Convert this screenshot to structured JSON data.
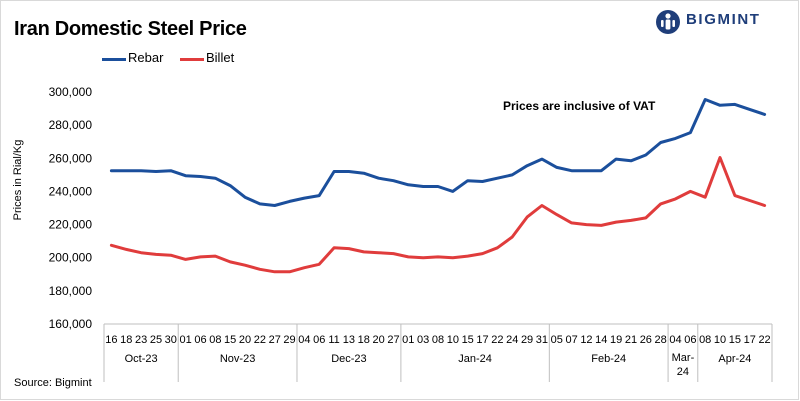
{
  "header": {
    "title": "Iran Domestic Steel Price",
    "logo_text": "BIGMINT"
  },
  "annotation": "Prices are inclusive  of VAT",
  "source": "Source: Bigmint",
  "colors": {
    "rebar": "#1b4f9c",
    "billet": "#e03c3c",
    "logo": "#1f3e7a"
  },
  "chart_data": {
    "type": "line",
    "title": "Iran Domestic Steel Price",
    "ylabel": "Prices in Rial/Kg",
    "xlabel": "",
    "ylim": [
      160000,
      300000
    ],
    "yticks": [
      160000,
      180000,
      200000,
      220000,
      240000,
      260000,
      280000,
      300000
    ],
    "ytick_labels": [
      "160,000",
      "180,000",
      "200,000",
      "220,000",
      "240,000",
      "260,000",
      "280,000",
      "300,000"
    ],
    "legend_position": "top-left",
    "grid": false,
    "x": [
      "16",
      "18",
      "23",
      "25",
      "30",
      "01",
      "06",
      "08",
      "15",
      "20",
      "22",
      "27",
      "29",
      "04",
      "06",
      "11",
      "13",
      "18",
      "20",
      "27",
      "01",
      "03",
      "08",
      "10",
      "15",
      "17",
      "22",
      "24",
      "29",
      "31",
      "05",
      "07",
      "12",
      "14",
      "19",
      "21",
      "26",
      "28",
      "04",
      "06",
      "08",
      "10",
      "15",
      "17",
      "22"
    ],
    "month_groups": [
      {
        "label": "Oct-23",
        "count": 5
      },
      {
        "label": "Nov-23",
        "count": 8
      },
      {
        "label": "Dec-23",
        "count": 7
      },
      {
        "label": "Jan-24",
        "count": 10
      },
      {
        "label": "Feb-24",
        "count": 8
      },
      {
        "label": "Mar-24",
        "count": 2
      },
      {
        "label": "Apr-24",
        "count": 5
      }
    ],
    "series": [
      {
        "name": "Rebar",
        "color": "#1b4f9c",
        "values": [
          252500,
          252500,
          252500,
          252000,
          252500,
          249500,
          249000,
          248000,
          243500,
          236500,
          232500,
          231500,
          234000,
          236000,
          237500,
          252000,
          252000,
          251000,
          248000,
          246500,
          244000,
          243000,
          243000,
          240000,
          246500,
          246000,
          248000,
          250000,
          255500,
          259500,
          254500,
          252500,
          252500,
          252500,
          259500,
          258500,
          262000,
          269500,
          272000,
          275500,
          295500,
          292000,
          292500,
          289500,
          286500
        ]
      },
      {
        "name": "Billet",
        "color": "#e03c3c",
        "values": [
          207500,
          205000,
          203000,
          202000,
          201500,
          199000,
          200500,
          201000,
          197500,
          195500,
          193000,
          191500,
          191500,
          194000,
          196000,
          206000,
          205500,
          203500,
          203000,
          202500,
          200500,
          200000,
          200500,
          200000,
          201000,
          202500,
          206000,
          212500,
          224500,
          231500,
          226000,
          221000,
          220000,
          219500,
          221500,
          222500,
          224000,
          232500,
          235500,
          240000,
          236500,
          260500,
          237500,
          234500,
          231500
        ]
      }
    ]
  }
}
